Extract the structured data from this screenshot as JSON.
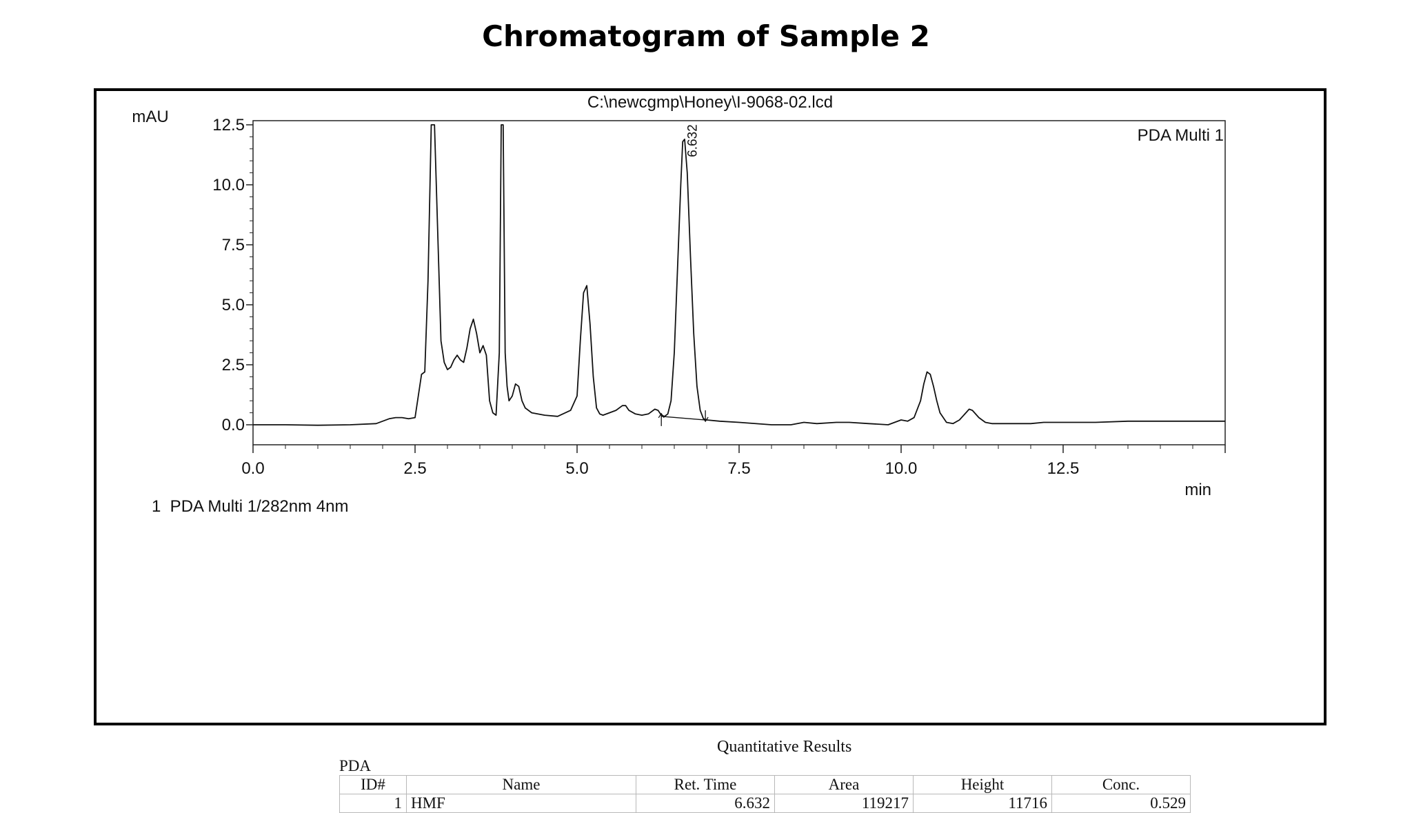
{
  "slide_title": "Chromatogram of Sample 2",
  "chart_data": {
    "type": "line",
    "title": "C:\\newcgmp\\Honey\\I-9068-02.lcd",
    "xlabel": "min",
    "ylabel": "mAU",
    "xlim": [
      0,
      15
    ],
    "ylim": [
      -0.8,
      12.5
    ],
    "x_ticks": [
      0.0,
      2.5,
      5.0,
      7.5,
      10.0,
      12.5
    ],
    "x_tick_labels": [
      "0.0",
      "2.5",
      "5.0",
      "7.5",
      "10.0",
      "12.5"
    ],
    "y_ticks": [
      0.0,
      2.5,
      5.0,
      7.5,
      10.0,
      12.5
    ],
    "y_tick_labels": [
      "0.0",
      "2.5",
      "5.0",
      "7.5",
      "10.0",
      "12.5"
    ],
    "grid": false,
    "legend_label": "PDA Multi 1",
    "legend_position": "top-right",
    "detector_caption": "1  PDA Multi 1/282nm 4nm",
    "series": [
      {
        "x": [
          0.0,
          0.5,
          1.0,
          1.5,
          1.9,
          2.1,
          2.2,
          2.3,
          2.4,
          2.5,
          2.55,
          2.6,
          2.65,
          2.7,
          2.75,
          2.8,
          2.85,
          2.9,
          2.95,
          3.0,
          3.05,
          3.1,
          3.15,
          3.2,
          3.25,
          3.3,
          3.35,
          3.4,
          3.45,
          3.5,
          3.55,
          3.6,
          3.65,
          3.7,
          3.75,
          3.8,
          3.83,
          3.86,
          3.89,
          3.92,
          3.95,
          4.0,
          4.05,
          4.1,
          4.15,
          4.2,
          4.3,
          4.5,
          4.7,
          4.9,
          5.0,
          5.05,
          5.1,
          5.15,
          5.2,
          5.25,
          5.3,
          5.35,
          5.4,
          5.5,
          5.6,
          5.7,
          5.75,
          5.8,
          5.9,
          6.0,
          6.1,
          6.2,
          6.25,
          6.3,
          6.35,
          6.4,
          6.45,
          6.5,
          6.55,
          6.6,
          6.63,
          6.66,
          6.7,
          6.75,
          6.8,
          6.85,
          6.9,
          6.95,
          7.0,
          7.2,
          7.5,
          8.0,
          8.3,
          8.5,
          8.7,
          9.0,
          9.2,
          9.5,
          9.8,
          10.0,
          10.1,
          10.2,
          10.3,
          10.35,
          10.4,
          10.45,
          10.5,
          10.55,
          10.6,
          10.7,
          10.8,
          10.9,
          11.0,
          11.05,
          11.1,
          11.2,
          11.3,
          11.4,
          11.6,
          12.0,
          12.2,
          12.5,
          13.0,
          13.5,
          14.0,
          14.5,
          15.0
        ],
        "y": [
          0.0,
          0.0,
          -0.02,
          0.0,
          0.05,
          0.25,
          0.3,
          0.3,
          0.25,
          0.3,
          1.2,
          2.1,
          2.2,
          6.0,
          12.5,
          12.5,
          8.0,
          3.5,
          2.6,
          2.3,
          2.4,
          2.7,
          2.9,
          2.7,
          2.6,
          3.2,
          4.0,
          4.4,
          3.8,
          3.0,
          3.3,
          2.9,
          1.0,
          0.5,
          0.4,
          3.0,
          12.5,
          12.5,
          3.0,
          1.6,
          1.0,
          1.2,
          1.7,
          1.6,
          1.0,
          0.7,
          0.5,
          0.4,
          0.35,
          0.6,
          1.2,
          3.5,
          5.5,
          5.8,
          4.2,
          2.0,
          0.7,
          0.45,
          0.4,
          0.5,
          0.6,
          0.8,
          0.8,
          0.6,
          0.45,
          0.4,
          0.45,
          0.65,
          0.6,
          0.4,
          0.35,
          0.45,
          1.0,
          3.0,
          6.5,
          10.0,
          11.8,
          11.9,
          10.5,
          7.0,
          3.8,
          1.6,
          0.6,
          0.25,
          0.2,
          0.15,
          0.1,
          0.0,
          0.0,
          0.1,
          0.05,
          0.1,
          0.1,
          0.05,
          0.0,
          0.2,
          0.15,
          0.3,
          1.0,
          1.7,
          2.2,
          2.1,
          1.6,
          1.0,
          0.5,
          0.1,
          0.05,
          0.2,
          0.5,
          0.65,
          0.6,
          0.3,
          0.1,
          0.05,
          0.05,
          0.05,
          0.1,
          0.1,
          0.1,
          0.15,
          0.15,
          0.15,
          0.15
        ]
      }
    ],
    "peak_label": {
      "x": 6.632,
      "y": 11.9,
      "text": "6.632"
    },
    "baseline_marks": [
      {
        "x": 6.3,
        "y": 0.35
      },
      {
        "x": 6.98,
        "y": 0.2
      }
    ]
  },
  "results": {
    "title": "Quantitative Results",
    "group_label": "PDA",
    "columns": [
      "ID#",
      "Name",
      "Ret. Time",
      "Area",
      "Height",
      "Conc."
    ],
    "rows": [
      {
        "id": "1",
        "name": "HMF",
        "ret_time": "6.632",
        "area": "119217",
        "height": "11716",
        "conc": "0.529"
      }
    ]
  }
}
